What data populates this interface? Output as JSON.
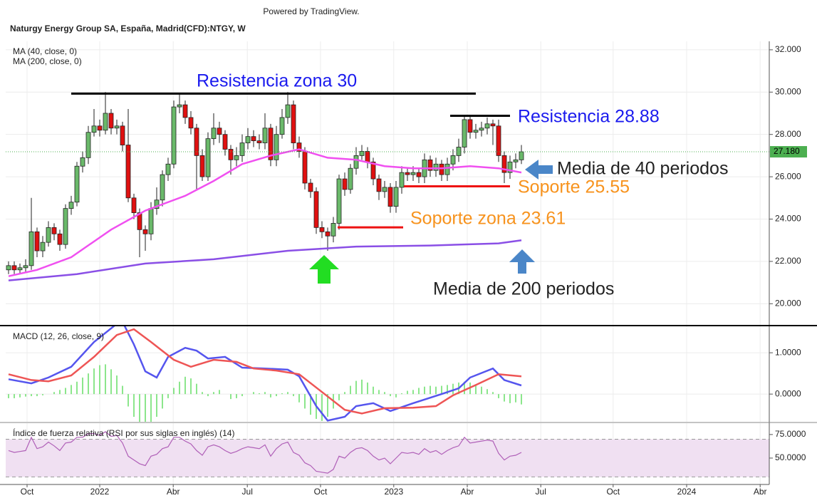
{
  "chart_data": [
    {
      "type": "candlestick",
      "source": "Powered by TradingView.",
      "title": "Naturgy Energy Group SA, España, Madrid(CFD):NTGY, W",
      "up_color": "#6ab96a",
      "down_color": "#e01010",
      "ohlc": [
        [
          21.6,
          22.0,
          21.4,
          21.8
        ],
        [
          21.8,
          22.0,
          21.4,
          21.6
        ],
        [
          21.6,
          21.9,
          21.4,
          21.7
        ],
        [
          21.7,
          22.1,
          21.5,
          21.8
        ],
        [
          21.8,
          25.0,
          21.6,
          23.4
        ],
        [
          23.4,
          23.6,
          22.2,
          22.5
        ],
        [
          22.5,
          23.2,
          22.2,
          22.9
        ],
        [
          22.9,
          23.9,
          22.7,
          23.6
        ],
        [
          23.6,
          23.8,
          23.0,
          23.3
        ],
        [
          23.3,
          23.5,
          22.5,
          22.8
        ],
        [
          22.8,
          24.7,
          22.6,
          24.5
        ],
        [
          24.5,
          25.1,
          24.2,
          24.8
        ],
        [
          24.8,
          26.7,
          24.6,
          26.5
        ],
        [
          26.5,
          27.2,
          26.2,
          26.9
        ],
        [
          26.9,
          28.4,
          26.6,
          28.1
        ],
        [
          28.1,
          29.2,
          27.9,
          28.4
        ],
        [
          28.4,
          28.7,
          27.9,
          28.2
        ],
        [
          28.2,
          30.0,
          28.0,
          29.0
        ],
        [
          29.0,
          29.2,
          28.0,
          28.3
        ],
        [
          28.3,
          28.7,
          28.0,
          28.4
        ],
        [
          28.4,
          28.6,
          27.2,
          27.5
        ],
        [
          27.5,
          29.2,
          24.8,
          25.0
        ],
        [
          25.0,
          25.2,
          24.0,
          24.3
        ],
        [
          24.3,
          24.5,
          22.2,
          23.5
        ],
        [
          23.5,
          23.7,
          22.5,
          23.3
        ],
        [
          23.3,
          24.8,
          23.0,
          24.5
        ],
        [
          24.5,
          25.5,
          24.2,
          24.9
        ],
        [
          24.9,
          26.3,
          24.6,
          26.1
        ],
        [
          26.1,
          26.9,
          25.8,
          26.6
        ],
        [
          26.6,
          29.6,
          26.4,
          29.3
        ],
        [
          29.3,
          29.9,
          29.0,
          29.4
        ],
        [
          29.4,
          29.6,
          28.5,
          28.8
        ],
        [
          28.8,
          29.1,
          28.0,
          28.3
        ],
        [
          28.3,
          28.5,
          25.4,
          27.0
        ],
        [
          27.0,
          27.3,
          25.8,
          26.0
        ],
        [
          26.0,
          28.1,
          25.8,
          27.8
        ],
        [
          27.8,
          29.0,
          27.5,
          28.3
        ],
        [
          28.3,
          28.6,
          27.6,
          28.0
        ],
        [
          28.0,
          28.2,
          27.0,
          27.3
        ],
        [
          27.3,
          27.5,
          26.1,
          26.8
        ],
        [
          26.8,
          27.4,
          26.5,
          27.0
        ],
        [
          27.0,
          28.0,
          26.7,
          27.6
        ],
        [
          27.6,
          28.3,
          27.3,
          27.9
        ],
        [
          27.9,
          28.2,
          27.4,
          27.7
        ],
        [
          27.7,
          28.0,
          27.3,
          27.6
        ],
        [
          27.6,
          29.0,
          27.3,
          28.3
        ],
        [
          28.3,
          28.5,
          26.5,
          26.8
        ],
        [
          26.8,
          28.4,
          26.5,
          28.0
        ],
        [
          28.0,
          29.2,
          27.8,
          28.8
        ],
        [
          28.8,
          30.0,
          28.5,
          29.4
        ],
        [
          29.4,
          29.6,
          27.3,
          27.6
        ],
        [
          27.6,
          27.9,
          26.9,
          27.2
        ],
        [
          27.2,
          27.4,
          25.4,
          25.7
        ],
        [
          25.7,
          25.9,
          25.0,
          25.3
        ],
        [
          25.3,
          25.5,
          23.3,
          23.6
        ],
        [
          23.6,
          23.9,
          23.1,
          23.4
        ],
        [
          23.4,
          23.6,
          22.5,
          23.2
        ],
        [
          23.2,
          24.1,
          22.9,
          23.8
        ],
        [
          23.8,
          26.1,
          23.5,
          25.9
        ],
        [
          25.9,
          26.2,
          25.1,
          25.4
        ],
        [
          25.4,
          26.6,
          25.2,
          26.4
        ],
        [
          26.4,
          27.4,
          26.1,
          27.0
        ],
        [
          27.0,
          27.5,
          26.8,
          27.2
        ],
        [
          27.2,
          27.4,
          26.4,
          26.7
        ],
        [
          26.7,
          26.9,
          25.6,
          25.9
        ],
        [
          25.9,
          26.1,
          24.9,
          25.3
        ],
        [
          25.3,
          25.8,
          25.0,
          25.5
        ],
        [
          25.5,
          25.7,
          24.3,
          24.6
        ],
        [
          24.6,
          25.8,
          24.3,
          25.5
        ],
        [
          25.5,
          26.5,
          25.2,
          26.2
        ],
        [
          26.2,
          26.4,
          25.8,
          26.1
        ],
        [
          26.1,
          26.5,
          25.8,
          26.2
        ],
        [
          26.2,
          26.4,
          25.7,
          26.0
        ],
        [
          26.0,
          27.1,
          25.7,
          26.8
        ],
        [
          26.8,
          27.0,
          26.0,
          26.3
        ],
        [
          26.3,
          26.9,
          26.0,
          26.6
        ],
        [
          26.6,
          26.8,
          25.8,
          26.1
        ],
        [
          26.1,
          26.9,
          25.8,
          26.6
        ],
        [
          26.6,
          27.3,
          26.3,
          27.0
        ],
        [
          27.0,
          27.8,
          26.7,
          27.4
        ],
        [
          27.4,
          28.9,
          27.1,
          28.7
        ],
        [
          28.7,
          28.9,
          27.8,
          28.1
        ],
        [
          28.1,
          28.5,
          27.8,
          28.2
        ],
        [
          28.2,
          28.6,
          27.9,
          28.3
        ],
        [
          28.3,
          28.8,
          28.0,
          28.5
        ],
        [
          28.5,
          28.7,
          27.5,
          28.4
        ],
        [
          28.4,
          28.7,
          26.7,
          27.0
        ],
        [
          27.0,
          27.2,
          25.7,
          26.2
        ],
        [
          26.2,
          27.0,
          25.9,
          26.7
        ],
        [
          26.7,
          27.1,
          26.4,
          26.8
        ],
        [
          26.8,
          27.5,
          26.6,
          27.18
        ]
      ],
      "last_price": {
        "value": 27.18,
        "label": "27.180",
        "color": "#4caf50"
      },
      "series": [
        {
          "name": "MA (40, close, 0)",
          "color": "#f050f0",
          "x": [
            0,
            5,
            11,
            18,
            24,
            31,
            36,
            41,
            46,
            51,
            56,
            61,
            66,
            71,
            76,
            81,
            86,
            90
          ],
          "values": [
            21.3,
            21.6,
            22.2,
            23.5,
            24.4,
            25.1,
            25.8,
            26.6,
            27.0,
            27.3,
            26.9,
            26.8,
            26.5,
            26.4,
            26.4,
            26.5,
            26.4,
            26.2
          ]
        },
        {
          "name": "MA (200, close, 0)",
          "color": "#8a4fe6",
          "x": [
            0,
            12,
            24,
            36,
            49,
            61,
            74,
            86,
            90
          ],
          "values": [
            21.1,
            21.4,
            21.9,
            22.1,
            22.5,
            22.7,
            22.75,
            22.85,
            23.0
          ]
        }
      ],
      "annotations": [
        {
          "text": "Resistencia zona 30",
          "value": 29.93,
          "x": [
            11,
            82
          ],
          "color": "#000000",
          "text_color": "#1a1aee"
        },
        {
          "text": "Resistencia 28.88",
          "value": 28.88,
          "x": [
            77.5,
            88
          ],
          "color": "#000000",
          "text_color": "#1a1aee"
        },
        {
          "text": "Soporte 25.55",
          "value": 25.55,
          "x": [
            69.4,
            88
          ],
          "color": "#ee1111",
          "text_color": "#f7931e"
        },
        {
          "text": "Soporte zona 23.61",
          "value": 23.61,
          "x": [
            57.75,
            69.25
          ],
          "color": "#ee1111",
          "text_color": "#f7931e"
        }
      ],
      "notes": [
        "Media de 40 periodos",
        "Media de 200 periodos"
      ],
      "ylim": [
        19,
        32.4
      ],
      "yticks": [
        {
          "value": 20,
          "label": "20.000"
        },
        {
          "value": 22,
          "label": "22.000"
        },
        {
          "value": 24,
          "label": "24.000"
        },
        {
          "value": 26,
          "label": "26.000"
        },
        {
          "value": 28,
          "label": "28.000"
        },
        {
          "value": 30,
          "label": "30.000"
        },
        {
          "value": 32,
          "label": "32.000"
        }
      ],
      "xlim": [
        -0.5,
        133.5
      ],
      "xticks": [
        {
          "value": 3.25,
          "label": "Oct"
        },
        {
          "value": 16,
          "label": "2022"
        },
        {
          "value": 28.9,
          "label": "Abr"
        },
        {
          "value": 41.9,
          "label": "Jul"
        },
        {
          "value": 54.75,
          "label": "Oct"
        },
        {
          "value": 67.6,
          "label": "2023"
        },
        {
          "value": 80.5,
          "label": "Abr"
        },
        {
          "value": 93.4,
          "label": "Jul"
        },
        {
          "value": 106.1,
          "label": "Oct"
        },
        {
          "value": 119,
          "label": "2024"
        },
        {
          "value": 131.9,
          "label": "Abr"
        }
      ],
      "grid": true
    },
    {
      "type": "macd",
      "title": "MACD (12, 26, close, 9)",
      "histogram": {
        "color": "#66dd66",
        "values": [
          -0.1,
          -0.1,
          -0.08,
          -0.06,
          -0.05,
          -0.05,
          -0.03,
          0.0,
          0.05,
          0.1,
          0.15,
          0.22,
          0.3,
          0.4,
          0.5,
          0.62,
          0.7,
          0.72,
          0.6,
          0.45,
          0.2,
          -0.3,
          -0.55,
          -0.7,
          -0.72,
          -0.7,
          -0.55,
          -0.35,
          -0.1,
          0.15,
          0.3,
          0.42,
          0.38,
          0.25,
          0.05,
          -0.05,
          0.05,
          0.1,
          0.0,
          -0.12,
          -0.1,
          -0.05,
          0.0,
          0.05,
          0.02,
          0.05,
          -0.08,
          -0.05,
          0.02,
          0.05,
          -0.05,
          -0.2,
          -0.35,
          -0.5,
          -0.6,
          -0.65,
          -0.55,
          -0.35,
          -0.15,
          0.05,
          0.2,
          0.32,
          0.35,
          0.28,
          0.18,
          0.1,
          0.05,
          -0.05,
          -0.08,
          0.02,
          0.08,
          0.1,
          0.15,
          0.18,
          0.2,
          0.18,
          0.2,
          0.22,
          0.25,
          0.28,
          0.3,
          0.28,
          0.22,
          0.18,
          0.12,
          0.05,
          -0.1,
          -0.18,
          -0.22,
          -0.2,
          -0.25
        ]
      },
      "series": [
        {
          "color": "#5555ee",
          "x": [
            0,
            4,
            7,
            11,
            15,
            19,
            20,
            22,
            24,
            26,
            28,
            31,
            33,
            35,
            38,
            41,
            45,
            49,
            51,
            54,
            56,
            59,
            61,
            64,
            67,
            71,
            76,
            79,
            81,
            85,
            87,
            90
          ],
          "values": [
            0.36,
            0.26,
            0.4,
            0.66,
            1.26,
            1.7,
            1.75,
            1.2,
            0.55,
            0.4,
            0.9,
            1.12,
            1.05,
            0.86,
            0.9,
            0.64,
            0.62,
            0.59,
            0.43,
            -0.29,
            -0.64,
            -0.55,
            -0.29,
            -0.22,
            -0.41,
            -0.22,
            0.0,
            0.14,
            0.4,
            0.62,
            0.34,
            0.21
          ]
        },
        {
          "color": "#ee5555",
          "x": [
            0,
            4,
            7,
            11,
            15,
            19,
            22,
            25,
            29,
            32,
            36,
            40,
            43,
            47,
            51,
            55,
            59,
            62,
            66,
            71,
            75,
            78,
            82,
            86,
            90
          ],
          "values": [
            0.48,
            0.34,
            0.31,
            0.45,
            0.9,
            1.43,
            1.57,
            1.26,
            0.83,
            0.66,
            0.83,
            0.78,
            0.62,
            0.57,
            0.48,
            0.05,
            -0.38,
            -0.47,
            -0.34,
            -0.33,
            -0.29,
            -0.03,
            0.22,
            0.48,
            0.43
          ]
        }
      ],
      "ylim": [
        -0.67,
        1.64
      ],
      "yticks": [
        {
          "value": 0,
          "label": "0.0000"
        },
        {
          "value": 1,
          "label": "1.0000"
        }
      ]
    },
    {
      "type": "line",
      "title": "Índice de fuerza relativa (RSI por sus siglas en inglés) (14)",
      "series": [
        {
          "color": "#b060b8",
          "values": [
            58,
            56,
            57,
            58,
            72,
            60,
            62,
            67,
            63,
            58,
            66,
            67,
            72,
            72,
            76,
            76,
            74,
            78,
            73,
            74,
            66,
            52,
            48,
            44,
            42,
            52,
            54,
            60,
            62,
            72,
            72,
            68,
            65,
            58,
            53,
            62,
            64,
            62,
            58,
            55,
            57,
            60,
            62,
            61,
            60,
            64,
            52,
            60,
            65,
            67,
            56,
            53,
            45,
            42,
            36,
            35,
            34,
            38,
            52,
            50,
            56,
            60,
            61,
            58,
            52,
            48,
            50,
            44,
            50,
            56,
            55,
            56,
            54,
            60,
            56,
            58,
            54,
            58,
            61,
            63,
            72,
            66,
            67,
            68,
            69,
            68,
            55,
            48,
            52,
            53,
            56
          ]
        }
      ],
      "band": [
        30,
        70
      ],
      "band_color": "#f0e0f2",
      "ylim": [
        22,
        87
      ],
      "yticks": [
        {
          "value": 50,
          "label": "50.0000"
        },
        {
          "value": 75,
          "label": "75.0000"
        }
      ]
    }
  ]
}
